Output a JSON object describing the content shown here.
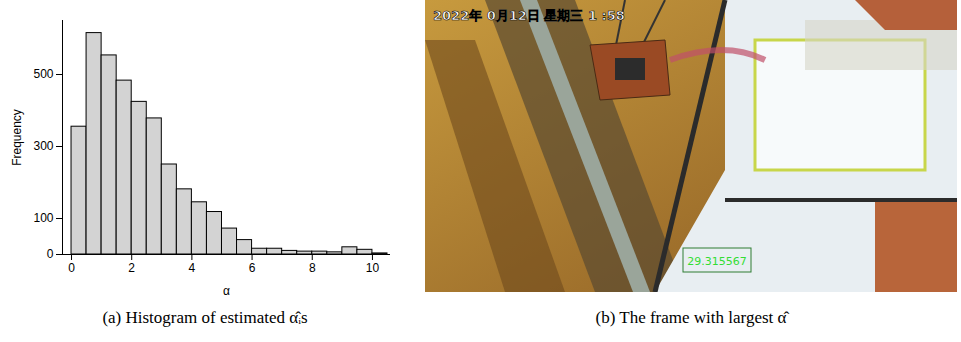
{
  "chart_data": {
    "type": "histogram",
    "caption": "(a) Histogram of estimated α̂ᵢs",
    "x_label": "α",
    "y_label": "Frequency",
    "bins": [
      0,
      0.5,
      1,
      1.5,
      2,
      2.5,
      3,
      3.5,
      4,
      4.5,
      5,
      5.5,
      6,
      6.5,
      7,
      7.5,
      8,
      8.5,
      9,
      9.5,
      10,
      10.5
    ],
    "counts": [
      355,
      615,
      553,
      483,
      424,
      378,
      250,
      181,
      145,
      118,
      72,
      40,
      16,
      16,
      10,
      8,
      8,
      6,
      20,
      13,
      3
    ],
    "color": "#d3d3d3",
    "xlim": [
      -0.3,
      10.6
    ],
    "xticks": [
      0,
      2,
      4,
      6,
      8,
      10
    ],
    "ylim": [
      0,
      650
    ],
    "yticks": [
      0,
      100,
      300,
      500
    ],
    "grid": false
  },
  "image_panel": {
    "caption": "(b) The frame with largest α̂",
    "timestamp": "2022年 0月12日 星期三 1 :58",
    "overlay_value": "29.315567"
  }
}
